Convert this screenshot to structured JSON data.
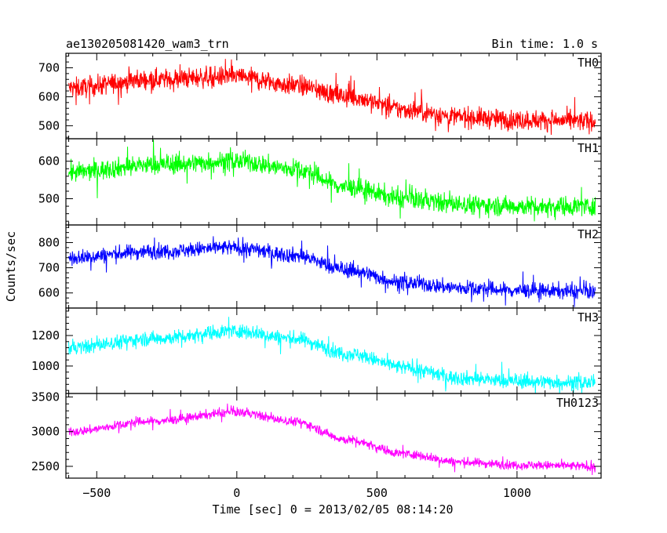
{
  "chart_data": {
    "type": "line",
    "title": "ae130205081420_wam3_trn",
    "bin_time": "Bin time: 1.0 s",
    "xlabel": "Time [sec] 0 = 2013/02/05 08:14:20",
    "ylabel": "Counts/sec",
    "xlim": [
      -610,
      1300
    ],
    "x_ticks": [
      -500,
      0,
      500,
      1000
    ],
    "x_tick_labels": [
      "−500",
      "0",
      "500",
      "1000"
    ],
    "data_range_x": [
      -600,
      1280
    ],
    "panels": [
      {
        "name": "TH0",
        "color": "#ff0000",
        "ylim": [
          455,
          750
        ],
        "y_ticks": [
          500,
          600,
          700
        ],
        "y_tick_labels": [
          "500",
          "600",
          "700"
        ],
        "trend": [
          [
            -600,
            630
          ],
          [
            -300,
            660
          ],
          [
            0,
            670
          ],
          [
            200,
            640
          ],
          [
            400,
            600
          ],
          [
            600,
            555
          ],
          [
            800,
            530
          ],
          [
            1000,
            520
          ],
          [
            1280,
            515
          ]
        ],
        "noise": 40
      },
      {
        "name": "TH1",
        "color": "#00ff00",
        "ylim": [
          430,
          660
        ],
        "y_ticks": [
          500,
          600
        ],
        "y_tick_labels": [
          "500",
          "600"
        ],
        "trend": [
          [
            -600,
            570
          ],
          [
            -300,
            590
          ],
          [
            0,
            600
          ],
          [
            200,
            580
          ],
          [
            400,
            530
          ],
          [
            600,
            500
          ],
          [
            800,
            485
          ],
          [
            1000,
            480
          ],
          [
            1280,
            480
          ]
        ],
        "noise": 30
      },
      {
        "name": "TH2",
        "color": "#0000ff",
        "ylim": [
          540,
          870
        ],
        "y_ticks": [
          600,
          700,
          800
        ],
        "y_tick_labels": [
          "600",
          "700",
          "800"
        ],
        "trend": [
          [
            -600,
            740
          ],
          [
            -300,
            765
          ],
          [
            0,
            780
          ],
          [
            200,
            750
          ],
          [
            400,
            690
          ],
          [
            600,
            640
          ],
          [
            800,
            620
          ],
          [
            1000,
            610
          ],
          [
            1280,
            605
          ]
        ],
        "noise": 35
      },
      {
        "name": "TH3",
        "color": "#00ffff",
        "ylim": [
          820,
          1380
        ],
        "y_ticks": [
          1000,
          1200
        ],
        "y_tick_labels": [
          "1000",
          "1200"
        ],
        "trend": [
          [
            -600,
            1120
          ],
          [
            -300,
            1180
          ],
          [
            0,
            1230
          ],
          [
            200,
            1180
          ],
          [
            400,
            1080
          ],
          [
            600,
            990
          ],
          [
            800,
            920
          ],
          [
            1000,
            900
          ],
          [
            1280,
            890
          ]
        ],
        "noise": 55
      },
      {
        "name": "TH0123",
        "color": "#ff00ff",
        "ylim": [
          2330,
          3550
        ],
        "y_ticks": [
          2500,
          3000,
          3500
        ],
        "y_tick_labels": [
          "2500",
          "3000",
          "3500"
        ],
        "trend": [
          [
            -600,
            3000
          ],
          [
            -300,
            3150
          ],
          [
            0,
            3280
          ],
          [
            200,
            3150
          ],
          [
            400,
            2880
          ],
          [
            600,
            2680
          ],
          [
            800,
            2560
          ],
          [
            1000,
            2520
          ],
          [
            1280,
            2500
          ]
        ],
        "noise": 75
      }
    ]
  }
}
